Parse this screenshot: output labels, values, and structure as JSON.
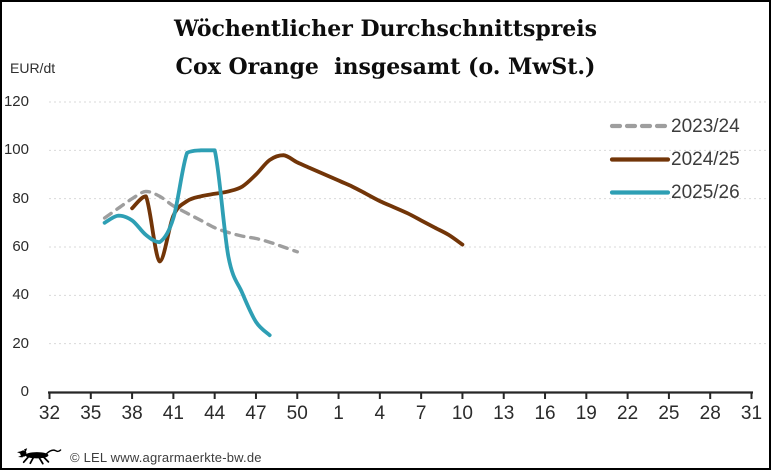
{
  "title": {
    "line1": "Wöchentlicher Durchschnittspreis",
    "line2": "Cox Orange  insgesamt (o. MwSt.)"
  },
  "y_axis_unit": "EUR/dt",
  "footer": {
    "logo": "bw-lion-logo",
    "credit": "© LEL www.agrarmaerkte-bw.de"
  },
  "colors": {
    "grid": "#d9d9d9",
    "axis": "#262626",
    "tick_text": "#2b2b2b",
    "legend_text": "#3c3c3c",
    "series_2023": "#9e9e9e",
    "series_2024": "#723508",
    "series_2025": "#2e9fb4"
  },
  "chart_data": {
    "type": "line",
    "title": "Wöchentlicher Durchschnittspreis Cox Orange insgesamt (o. MwSt.)",
    "ylabel": "EUR/dt",
    "ylim": [
      0,
      120
    ],
    "grid": "horizontal-dashed",
    "legend_position": "right-top",
    "x_axis": {
      "description": "calendar week",
      "tick_weeks": [
        32,
        35,
        38,
        41,
        44,
        47,
        50,
        1,
        4,
        7,
        10,
        13,
        16,
        19,
        22,
        25,
        28,
        31
      ],
      "week_sequence": "32..52 then 1..31"
    },
    "y_axis": {
      "ticks": [
        0,
        20,
        40,
        60,
        80,
        100,
        120
      ]
    },
    "series": [
      {
        "name": "2023/24",
        "color": "#9e9e9e",
        "style": "dashed",
        "weeks": [
          36,
          37,
          38,
          39,
          40,
          41,
          42,
          43,
          44,
          45,
          46,
          47,
          48,
          49,
          50
        ],
        "values": [
          72,
          76,
          80,
          83,
          81,
          77,
          74,
          71,
          68,
          66,
          64.5,
          63.5,
          62,
          60,
          58
        ]
      },
      {
        "name": "2024/25",
        "color": "#723508",
        "style": "solid",
        "weeks": [
          38,
          39,
          40,
          41,
          42,
          43,
          44,
          45,
          46,
          47,
          48,
          49,
          50,
          51,
          52,
          1,
          2,
          3,
          4,
          5,
          6,
          7,
          8,
          9,
          10
        ],
        "values": [
          76,
          81,
          54,
          73,
          79,
          81,
          82,
          83,
          85,
          90,
          96,
          98,
          95,
          92.5,
          90,
          87.5,
          85,
          82,
          79,
          76.5,
          74,
          71,
          68,
          65,
          61
        ]
      },
      {
        "name": "2025/26",
        "color": "#2e9fb4",
        "style": "solid",
        "weeks": [
          36,
          37,
          38,
          39,
          40,
          41,
          42,
          43,
          44,
          45,
          46,
          47,
          48
        ],
        "values": [
          70,
          73,
          71,
          65,
          62,
          72,
          99,
          100,
          100,
          56,
          41,
          29,
          23.5
        ]
      }
    ]
  }
}
